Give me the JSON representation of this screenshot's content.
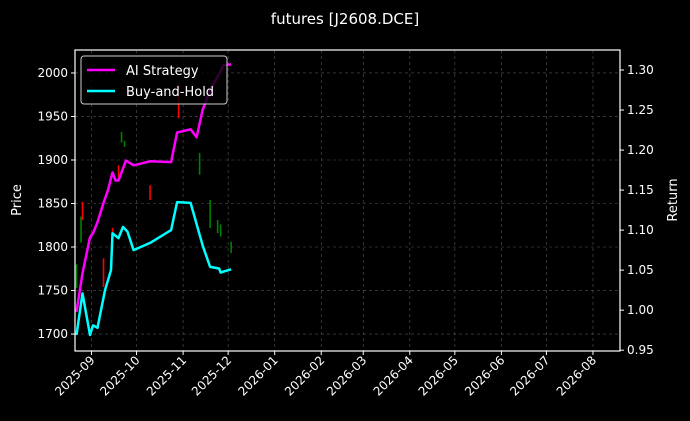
{
  "chart_data": {
    "type": "line",
    "title": "futures [J2608.DCE]",
    "ylabel": "Price",
    "y2label": "Return",
    "xlim": [
      "2025-08-21",
      "2026-08-19"
    ],
    "ylim": [
      1680.5,
      2026.4
    ],
    "y2lim": [
      0.949,
      1.325
    ],
    "grid": true,
    "legend_placement": "top-left",
    "x_ticks": [
      "2025-09",
      "2025-10",
      "2025-11",
      "2025-12",
      "2026-01",
      "2026-02",
      "2026-03",
      "2026-04",
      "2026-05",
      "2026-06",
      "2026-07",
      "2026-08"
    ],
    "y_ticks": [
      1700,
      1750,
      1800,
      1850,
      1900,
      1950,
      2000
    ],
    "y2_ticks": [
      "0.95",
      "1.00",
      "1.05",
      "1.10",
      "1.15",
      "1.20",
      "1.25",
      "1.30"
    ],
    "colors": {
      "ai": "#ff00ff",
      "bh": "#00ffff",
      "up": "#ff0000",
      "down": "#008000",
      "grid": "#555555"
    },
    "series": [
      {
        "name": "AI Strategy",
        "axis": "right",
        "color": "#ff00ff",
        "x": [
          "2025-08-22",
          "2025-08-26",
          "2025-08-31",
          "2025-09-02",
          "2025-09-05",
          "2025-09-09",
          "2025-09-12",
          "2025-09-15",
          "2025-09-17",
          "2025-09-19",
          "2025-09-24",
          "2025-09-29",
          "2025-10-10",
          "2025-10-24",
          "2025-10-28",
          "2025-11-06",
          "2025-11-10",
          "2025-11-14",
          "2025-11-19",
          "2025-11-25",
          "2025-11-28",
          "2025-12-03"
        ],
        "values": [
          0.998,
          1.046,
          1.091,
          1.096,
          1.11,
          1.134,
          1.15,
          1.172,
          1.162,
          1.162,
          1.187,
          1.181,
          1.186,
          1.185,
          1.222,
          1.226,
          1.216,
          1.25,
          1.275,
          1.295,
          1.306,
          1.307
        ]
      },
      {
        "name": "Buy-and-Hold",
        "axis": "right",
        "color": "#00ffff",
        "x": [
          "2025-08-22",
          "2025-08-26",
          "2025-08-31",
          "2025-09-02",
          "2025-09-05",
          "2025-09-10",
          "2025-09-14",
          "2025-09-15",
          "2025-09-19",
          "2025-09-22",
          "2025-09-25",
          "2025-09-29",
          "2025-10-10",
          "2025-10-24",
          "2025-10-28",
          "2025-11-06",
          "2025-11-14",
          "2025-11-19",
          "2025-11-25",
          "2025-11-26",
          "2025-12-03"
        ],
        "values": [
          0.969,
          1.021,
          0.969,
          0.981,
          0.978,
          1.025,
          1.05,
          1.096,
          1.09,
          1.104,
          1.098,
          1.075,
          1.084,
          1.1,
          1.135,
          1.134,
          1.081,
          1.054,
          1.052,
          1.047,
          1.051
        ]
      }
    ],
    "candles": [
      {
        "date": "2025-08-22",
        "open": 1780,
        "close": 1753
      },
      {
        "date": "2025-08-25",
        "open": 1835,
        "close": 1805
      },
      {
        "date": "2025-08-26",
        "open": 1831,
        "close": 1852
      },
      {
        "date": "2025-09-09",
        "open": 1754,
        "close": 1787
      },
      {
        "date": "2025-09-15",
        "open": 1813,
        "close": 1822
      },
      {
        "date": "2025-09-19",
        "open": 1880,
        "close": 1894
      },
      {
        "date": "2025-09-21",
        "open": 1932,
        "close": 1920
      },
      {
        "date": "2025-09-23",
        "open": 1922,
        "close": 1915
      },
      {
        "date": "2025-10-10",
        "open": 1854,
        "close": 1871
      },
      {
        "date": "2025-10-29",
        "open": 1948,
        "close": 1988
      },
      {
        "date": "2025-11-12",
        "open": 1908,
        "close": 1883
      },
      {
        "date": "2025-11-19",
        "open": 1854,
        "close": 1822
      },
      {
        "date": "2025-11-24",
        "open": 1831,
        "close": 1816
      },
      {
        "date": "2025-11-26",
        "open": 1826,
        "close": 1812
      },
      {
        "date": "2025-12-03",
        "open": 1806,
        "close": 1793
      }
    ]
  }
}
